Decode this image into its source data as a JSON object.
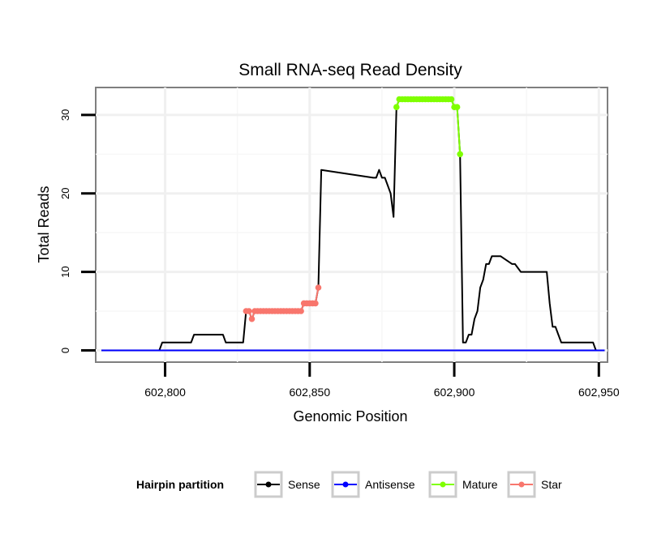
{
  "chart_data": {
    "type": "line",
    "title": "Small RNA-seq Read Density",
    "xlabel": "Genomic Position",
    "ylabel": "Total Reads",
    "xlim": [
      602776,
      602953
    ],
    "ylim": [
      -1.5,
      33.5
    ],
    "x_ticks": [
      602800,
      602850,
      602900,
      602950
    ],
    "x_tick_labels": [
      "602,800",
      "602,850",
      "602,900",
      "602,950"
    ],
    "y_ticks": [
      0,
      10,
      20,
      30
    ],
    "y_tick_labels": [
      "0",
      "10",
      "20",
      "30"
    ],
    "grid": true,
    "legend": {
      "title": "Hairpin partition",
      "placement": "bottom",
      "entries": [
        "Sense",
        "Antisense",
        "Mature",
        "Star"
      ]
    },
    "series": [
      {
        "name": "Sense",
        "color": "#000000",
        "marker": false,
        "x": [
          602778,
          602798,
          602799,
          602800,
          602809,
          602810,
          602820,
          602821,
          602827,
          602828,
          602829,
          602830,
          602831,
          602847,
          602848,
          602852,
          602853,
          602854,
          602872,
          602873,
          602874,
          602875,
          602876,
          602877,
          602878,
          602879,
          602880,
          602881,
          602882,
          602899,
          602900,
          602901,
          602902,
          602903,
          602904,
          602905,
          602906,
          602907,
          602908,
          602909,
          602910,
          602911,
          602912,
          602913,
          602914,
          602915,
          602916,
          602920,
          602921,
          602923,
          602924,
          602932,
          602933,
          602934,
          602935,
          602936,
          602937,
          602948,
          602949,
          602952
        ],
        "y": [
          0,
          0,
          1,
          1,
          1,
          2,
          2,
          1,
          1,
          5,
          5,
          4,
          5,
          5,
          6,
          6,
          8,
          23,
          22,
          22,
          23,
          22,
          22,
          21,
          20,
          17,
          31,
          32,
          32,
          32,
          31,
          31,
          25,
          1,
          1,
          2,
          2,
          4,
          5,
          8,
          9,
          11,
          11,
          12,
          12,
          12,
          12,
          11,
          11,
          10,
          10,
          10,
          6,
          3,
          3,
          2,
          1,
          1,
          0,
          0
        ]
      },
      {
        "name": "Antisense",
        "color": "#0000ff",
        "marker": false,
        "x": [
          602778,
          602952
        ],
        "y": [
          0,
          0
        ]
      },
      {
        "name": "Mature",
        "color": "#7fff00",
        "marker": true,
        "x": [
          602880,
          602881,
          602882,
          602883,
          602884,
          602885,
          602886,
          602887,
          602888,
          602889,
          602890,
          602891,
          602892,
          602893,
          602894,
          602895,
          602896,
          602897,
          602898,
          602899,
          602900,
          602901,
          602902
        ],
        "y": [
          31,
          32,
          32,
          32,
          32,
          32,
          32,
          32,
          32,
          32,
          32,
          32,
          32,
          32,
          32,
          32,
          32,
          32,
          32,
          32,
          31,
          31,
          25
        ]
      },
      {
        "name": "Star",
        "color": "#f8766d",
        "marker": true,
        "x": [
          602828,
          602829,
          602830,
          602831,
          602832,
          602833,
          602834,
          602835,
          602836,
          602837,
          602838,
          602839,
          602840,
          602841,
          602842,
          602843,
          602844,
          602845,
          602846,
          602847,
          602848,
          602849,
          602850,
          602851,
          602852,
          602853
        ],
        "y": [
          5,
          5,
          4,
          5,
          5,
          5,
          5,
          5,
          5,
          5,
          5,
          5,
          5,
          5,
          5,
          5,
          5,
          5,
          5,
          5,
          6,
          6,
          6,
          6,
          6,
          8
        ]
      }
    ]
  }
}
